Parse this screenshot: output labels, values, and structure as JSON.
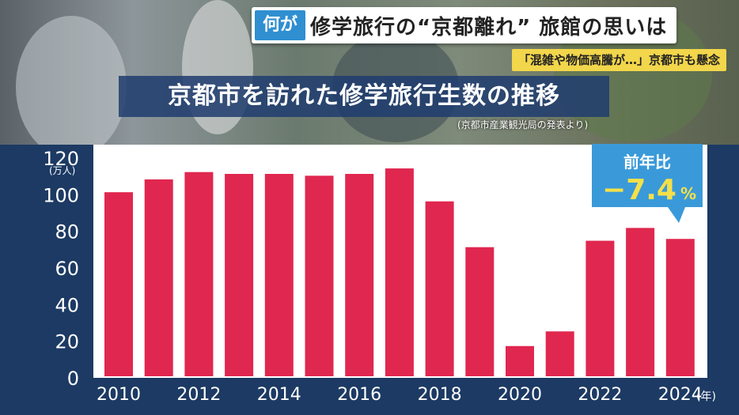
{
  "topic": {
    "tag": "何が",
    "title": "修学旅行の“京都離れ” 旅館の思いは"
  },
  "subtitle": "「混雑や物価高騰が…」京都市も懸念",
  "source": "(京都市産業観光局の発表より)",
  "callout": {
    "label": "前年比",
    "value": "−7.4",
    "unit": "%"
  },
  "colors": {
    "bar": "#e0274f",
    "background": "#1c3a63",
    "plot": "#ffffff",
    "callout": "#3a9ad9"
  },
  "chart_data": {
    "type": "bar",
    "title": "京都市を訪れた修学旅行生数の推移",
    "ylabel": "(万人)",
    "xunit": "(年)",
    "ylim": [
      0,
      120
    ],
    "yticks": [
      0,
      20,
      40,
      60,
      80,
      100,
      120
    ],
    "categories": [
      "2010",
      "2011",
      "2012",
      "2013",
      "2014",
      "2015",
      "2016",
      "2017",
      "2018",
      "2019",
      "2020",
      "2021",
      "2022",
      "2023",
      "2024"
    ],
    "xtick_labels": [
      "2010",
      "2012",
      "2014",
      "2016",
      "2018",
      "2020",
      "2022",
      "2024"
    ],
    "values": [
      100.5,
      107.5,
      111.5,
      110.5,
      110.5,
      109.5,
      110.5,
      113.5,
      95.5,
      70.5,
      16.5,
      24.5,
      74.0,
      81.0,
      75.0
    ]
  }
}
